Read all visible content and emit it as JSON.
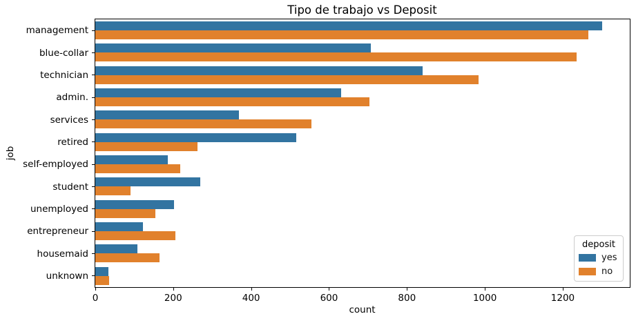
{
  "chart_data": {
    "type": "bar",
    "orientation": "horizontal",
    "title": "Tipo de trabajo vs Deposit",
    "xlabel": "count",
    "ylabel": "job",
    "categories": [
      "management",
      "blue-collar",
      "technician",
      "admin.",
      "services",
      "retired",
      "self-employed",
      "student",
      "unemployed",
      "entrepreneur",
      "housemaid",
      "unknown"
    ],
    "series": [
      {
        "name": "yes",
        "color": "#3274a1",
        "values": [
          1301,
          708,
          840,
          631,
          369,
          516,
          187,
          269,
          202,
          123,
          109,
          34
        ]
      },
      {
        "name": "no",
        "color": "#e1812c",
        "values": [
          1265,
          1236,
          983,
          703,
          554,
          262,
          218,
          91,
          155,
          205,
          165,
          36
        ]
      }
    ],
    "xlim": [
      0,
      1372
    ],
    "xticks": [
      0,
      200,
      400,
      600,
      800,
      1000,
      1200
    ],
    "grid": false,
    "legend": {
      "title": "deposit",
      "position": "lower right",
      "entries": [
        "yes",
        "no"
      ]
    },
    "colors": {
      "spine": "#000000",
      "background": "#ffffff",
      "legend_border": "#cccccc"
    }
  }
}
